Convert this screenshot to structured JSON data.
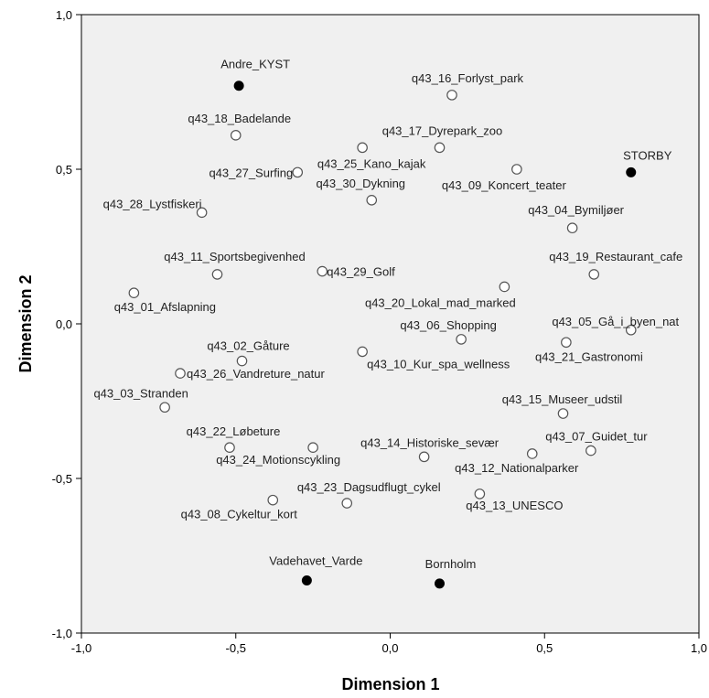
{
  "chart_data": {
    "type": "scatter",
    "title": "",
    "xlabel": "Dimension 1",
    "ylabel": "Dimension 2",
    "xlim": [
      -1.0,
      1.0
    ],
    "ylim": [
      -1.0,
      1.0
    ],
    "xticks": [
      "-1,0",
      "-0,5",
      "0,0",
      "0,5",
      "1,0"
    ],
    "yticks": [
      "1,0",
      "0,5",
      "0,0",
      "-0,5",
      "-1,0"
    ],
    "grid": false,
    "plot_background": "#f0f0f0",
    "marker_open_color": "#555555",
    "marker_filled_color": "#000000",
    "series": [
      {
        "marker": "filled",
        "points": [
          {
            "label": "Andre_KYST",
            "x": -0.49,
            "y": 0.77
          },
          {
            "label": "STORBY",
            "x": 0.78,
            "y": 0.49
          },
          {
            "label": "Vadehavet_Varde",
            "x": -0.27,
            "y": -0.83
          },
          {
            "label": "Bornholm",
            "x": 0.16,
            "y": -0.84
          }
        ]
      },
      {
        "marker": "open",
        "points": [
          {
            "label": "q43_16_Forlyst_park",
            "x": 0.2,
            "y": 0.74
          },
          {
            "label": "q43_18_Badelande",
            "x": -0.5,
            "y": 0.61
          },
          {
            "label": "q43_17_Dyrepark_zoo",
            "x": 0.16,
            "y": 0.57
          },
          {
            "label": "q43_25_Kano_kajak",
            "x": -0.09,
            "y": 0.57
          },
          {
            "label": "q43_27_Surfing",
            "x": -0.3,
            "y": 0.49
          },
          {
            "label": "q43_09_Koncert_teater",
            "x": 0.41,
            "y": 0.5
          },
          {
            "label": "q43_30_Dykning",
            "x": -0.06,
            "y": 0.4
          },
          {
            "label": "q43_28_Lystfiskeri",
            "x": -0.61,
            "y": 0.36
          },
          {
            "label": "q43_04_Bymiljøer",
            "x": 0.59,
            "y": 0.31
          },
          {
            "label": "q43_11_Sportsbegivenhed",
            "x": -0.56,
            "y": 0.16
          },
          {
            "label": "q43_29_Golf",
            "x": -0.22,
            "y": 0.17
          },
          {
            "label": "q43_19_Restaurant_cafe",
            "x": 0.66,
            "y": 0.16
          },
          {
            "label": "q43_01_Afslapning",
            "x": -0.83,
            "y": 0.1
          },
          {
            "label": "q43_20_Lokal_mad_marked",
            "x": 0.37,
            "y": 0.12
          },
          {
            "label": "q43_06_Shopping",
            "x": 0.23,
            "y": -0.05
          },
          {
            "label": "q43_05_Gå_i_byen_nat",
            "x": 0.78,
            "y": -0.02
          },
          {
            "label": "q43_02_Gåture",
            "x": -0.48,
            "y": -0.12
          },
          {
            "label": "q43_21_Gastronomi",
            "x": 0.57,
            "y": -0.06
          },
          {
            "label": "q43_26_Vandreture_natur",
            "x": -0.68,
            "y": -0.16
          },
          {
            "label": "q43_10_Kur_spa_wellness",
            "x": -0.09,
            "y": -0.09
          },
          {
            "label": "q43_03_Stranden",
            "x": -0.73,
            "y": -0.27
          },
          {
            "label": "q43_15_Museer_udstil",
            "x": 0.56,
            "y": -0.29
          },
          {
            "label": "q43_22_Løbeture",
            "x": -0.52,
            "y": -0.4
          },
          {
            "label": "q43_24_Motionscykling",
            "x": -0.25,
            "y": -0.4
          },
          {
            "label": "q43_14_Historiske_sevær",
            "x": 0.11,
            "y": -0.43
          },
          {
            "label": "q43_12_Nationalparker",
            "x": 0.46,
            "y": -0.42
          },
          {
            "label": "q43_07_Guidet_tur",
            "x": 0.65,
            "y": -0.41
          },
          {
            "label": "q43_23_Dagsudflugt_cykel",
            "x": -0.14,
            "y": -0.58
          },
          {
            "label": "q43_08_Cykeltur_kort",
            "x": -0.38,
            "y": -0.57
          },
          {
            "label": "q43_13_UNESCO",
            "x": 0.29,
            "y": -0.55
          }
        ]
      }
    ]
  }
}
